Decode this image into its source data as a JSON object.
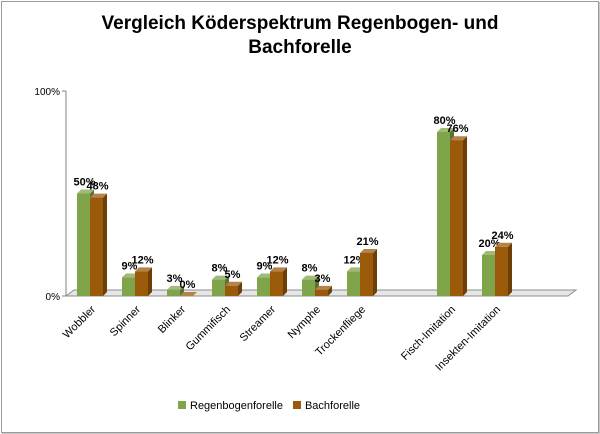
{
  "chart_data": {
    "type": "bar",
    "title_lines": [
      "Vergleich Köderspektrum Regenbogen- und",
      "Bachforelle"
    ],
    "y_ticks": [
      "0%",
      "100%"
    ],
    "ylim": [
      0,
      100
    ],
    "categories": [
      "Wobbler",
      "Spinner",
      "Blinker",
      "Gummifisch",
      "Streamer",
      "Nymphe",
      "Trockenfliege",
      "",
      "Fisch-Imitation",
      "Insekten-Imitation"
    ],
    "series": [
      {
        "name": "Regenbogenforelle",
        "values": [
          50,
          9,
          3,
          8,
          9,
          8,
          12,
          null,
          80,
          20
        ],
        "labels": [
          "50%",
          "9%",
          "3%",
          "8%",
          "9%",
          "8%",
          "12%",
          "",
          "80%",
          "20%"
        ],
        "color": "#7fa44a"
      },
      {
        "name": "Bachforelle",
        "values": [
          48,
          12,
          0,
          5,
          12,
          3,
          21,
          null,
          76,
          24
        ],
        "labels": [
          "48%",
          "12%",
          "0%",
          "5%",
          "12%",
          "3%",
          "21%",
          "",
          "76%",
          "24%"
        ],
        "color": "#9a5a0a"
      }
    ],
    "legend_position": "bottom",
    "grid": false
  }
}
